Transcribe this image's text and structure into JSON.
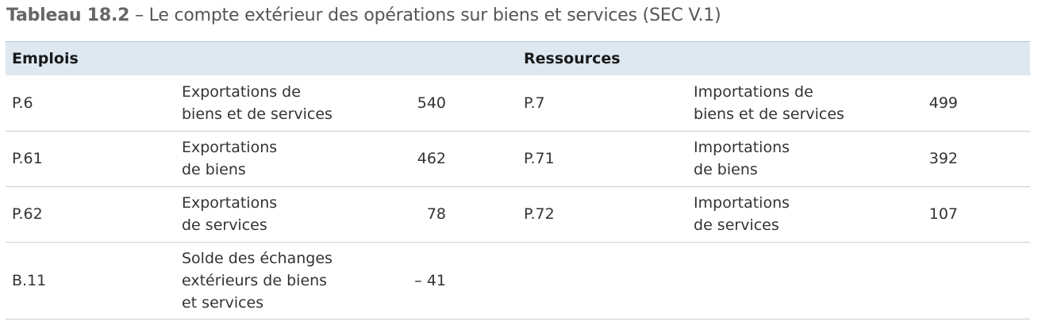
{
  "caption": {
    "number": "Tableau 18.2",
    "title": " – Le compte extérieur des opérations sur biens et services (SEC V.1)"
  },
  "table": {
    "headers": {
      "emplois": "Emplois",
      "ressources": "Ressources"
    },
    "rows": [
      {
        "e_code": "P.6",
        "e_label_1": "Exportations de",
        "e_label_2": "biens et de services",
        "e_label_3": "",
        "e_value": "540",
        "r_code": "P.7",
        "r_label_1": "Importations de",
        "r_label_2": "biens et de services",
        "r_value": "499"
      },
      {
        "e_code": "P.61",
        "e_label_1": "Exportations",
        "e_label_2": "de biens",
        "e_label_3": "",
        "e_value": "462",
        "r_code": "P.71",
        "r_label_1": "Importations",
        "r_label_2": "de biens",
        "r_value": "392"
      },
      {
        "e_code": "P.62",
        "e_label_1": "Exportations",
        "e_label_2": "de services",
        "e_label_3": "",
        "e_value": "78",
        "r_code": "P.72",
        "r_label_1": "Importations",
        "r_label_2": "de services",
        "r_value": "107"
      },
      {
        "e_code": "B.11",
        "e_label_1": "Solde des échanges",
        "e_label_2": "extérieurs de biens",
        "e_label_3": "et services",
        "e_value": "– 41",
        "r_code": "",
        "r_label_1": "",
        "r_label_2": "",
        "r_value": ""
      }
    ]
  }
}
